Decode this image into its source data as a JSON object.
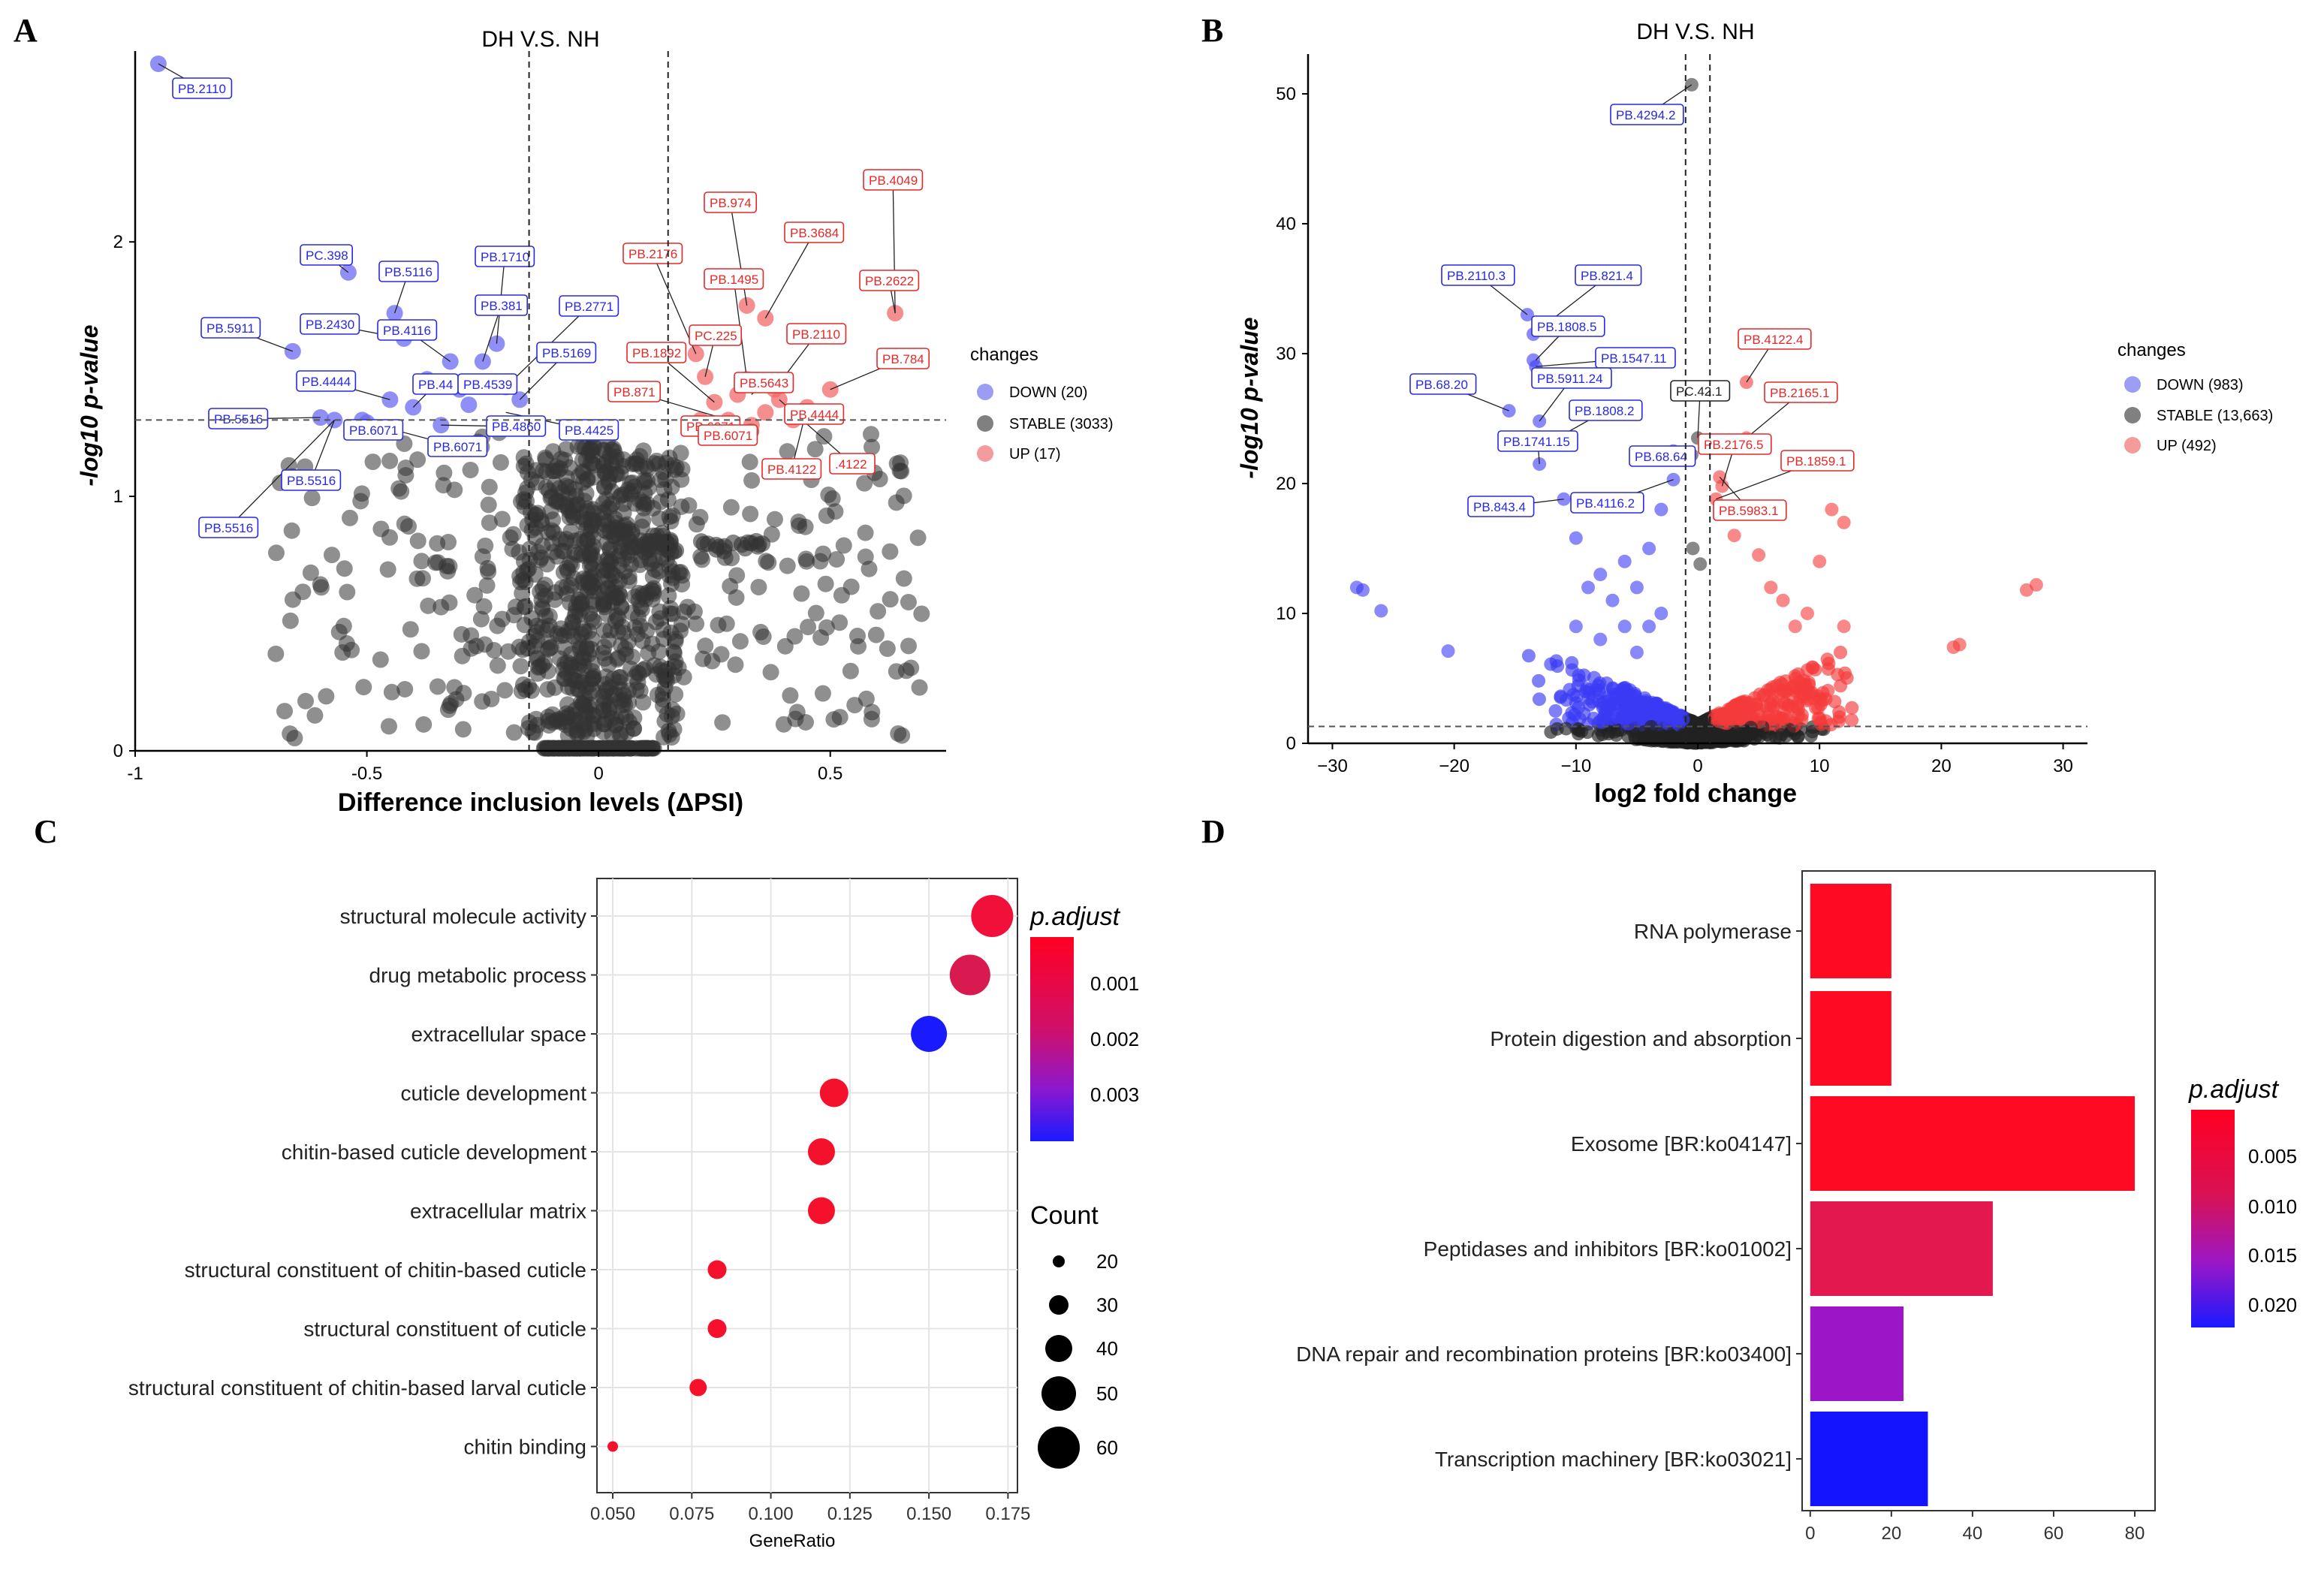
{
  "panel_letters": [
    "A",
    "B",
    "C",
    "D"
  ],
  "chart_data": [
    {
      "panel": "A",
      "type": "scatter",
      "title": "DH V.S. NH",
      "xlabel": "Difference inclusion levels (ΔPSI)",
      "ylabel": "-log10 p-value",
      "xlim": [
        -1.0,
        0.75
      ],
      "ylim": [
        0,
        2.75
      ],
      "x_ticks": [
        -1,
        -0.5,
        0,
        0.5
      ],
      "x_tick_labels": [
        "-1",
        "-0.5",
        "0",
        "0.5"
      ],
      "y_ticks": [
        0,
        1,
        2
      ],
      "y_tick_labels": [
        "0",
        "1",
        "2"
      ],
      "vlines": [
        -0.15,
        0.15
      ],
      "hline": 1.3,
      "legend_title": "changes",
      "legend": [
        {
          "label": "DOWN (20)",
          "color": "#7b7bf0"
        },
        {
          "label": "STABLE (3033)",
          "color": "#555555"
        },
        {
          "label": "UP (17)",
          "color": "#f07b7b"
        }
      ],
      "colors": {
        "down": "#6a6af2",
        "stable": "#333333",
        "up": "#f26a6a"
      },
      "down_points": [
        [
          -0.95,
          2.7
        ],
        [
          -0.54,
          1.88
        ],
        [
          -0.66,
          1.57
        ],
        [
          -0.44,
          1.72
        ],
        [
          -0.42,
          1.62
        ],
        [
          -0.32,
          1.53
        ],
        [
          -0.22,
          1.6
        ],
        [
          -0.25,
          1.53
        ],
        [
          -0.17,
          1.38
        ],
        [
          -0.2,
          1.43
        ],
        [
          -0.37,
          1.46
        ],
        [
          -0.3,
          1.42
        ],
        [
          -0.45,
          1.38
        ],
        [
          -0.51,
          1.3
        ],
        [
          -0.4,
          1.35
        ],
        [
          -0.57,
          1.3
        ],
        [
          -0.34,
          1.28
        ],
        [
          -0.5,
          1.29
        ],
        [
          -0.28,
          1.36
        ],
        [
          -0.6,
          1.31
        ]
      ],
      "up_points": [
        [
          0.32,
          1.75
        ],
        [
          0.36,
          1.7
        ],
        [
          0.64,
          1.72
        ],
        [
          0.5,
          1.42
        ],
        [
          0.23,
          1.47
        ],
        [
          0.21,
          1.56
        ],
        [
          0.32,
          1.46
        ],
        [
          0.25,
          1.37
        ],
        [
          0.3,
          1.4
        ],
        [
          0.39,
          1.38
        ],
        [
          0.45,
          1.35
        ],
        [
          0.36,
          1.33
        ],
        [
          0.28,
          1.3
        ],
        [
          0.42,
          1.3
        ],
        [
          0.33,
          1.28
        ],
        [
          0.22,
          1.3
        ],
        [
          0.38,
          1.42
        ]
      ],
      "labels": [
        {
          "text": "PB.2110",
          "side": "down"
        },
        {
          "text": "PC.398",
          "side": "down"
        },
        {
          "text": "PB.5116",
          "side": "down"
        },
        {
          "text": "PB.1710",
          "side": "down"
        },
        {
          "text": "PB.2430",
          "side": "down"
        },
        {
          "text": "PB.4116",
          "side": "down"
        },
        {
          "text": "PB.381",
          "side": "down"
        },
        {
          "text": "PB.2771",
          "side": "down"
        },
        {
          "text": "PB.5911",
          "side": "down"
        },
        {
          "text": "PB.4444",
          "side": "down"
        },
        {
          "text": "PB.44",
          "side": "down"
        },
        {
          "text": "PB.4539",
          "side": "down"
        },
        {
          "text": "PB.5169",
          "side": "down"
        },
        {
          "text": "PB.5516",
          "side": "down"
        },
        {
          "text": "PB.6071",
          "side": "down"
        },
        {
          "text": "PB.4860",
          "side": "down"
        },
        {
          "text": "PB.4425",
          "side": "down"
        },
        {
          "text": "PB.6071",
          "side": "down"
        },
        {
          "text": "PB.5516",
          "side": "down"
        },
        {
          "text": "PB.5516",
          "side": "down"
        },
        {
          "text": "PB.974",
          "side": "up"
        },
        {
          "text": "PB.4049",
          "side": "up"
        },
        {
          "text": "PB.3684",
          "side": "up"
        },
        {
          "text": "PB.2176",
          "side": "up"
        },
        {
          "text": "PB.1495",
          "side": "up"
        },
        {
          "text": "PB.2622",
          "side": "up"
        },
        {
          "text": "PC.225",
          "side": "up"
        },
        {
          "text": "PB.2110",
          "side": "up"
        },
        {
          "text": "PB.1892",
          "side": "up"
        },
        {
          "text": "PB.784",
          "side": "up"
        },
        {
          "text": "PB.5643",
          "side": "up"
        },
        {
          "text": "PB.871",
          "side": "up"
        },
        {
          "text": "PB.6071",
          "side": "up"
        },
        {
          "text": "PB.4444",
          "side": "up"
        },
        {
          "text": "PB.6071",
          "side": "up"
        },
        {
          "text": "PB.4122",
          "side": "up"
        },
        {
          "text": ".4122",
          "side": "up"
        }
      ]
    },
    {
      "panel": "B",
      "type": "scatter",
      "title": "DH V.S. NH",
      "xlabel": "log2 fold change",
      "ylabel": "-log10 p-value",
      "xlim": [
        -32,
        32
      ],
      "ylim": [
        0,
        52
      ],
      "x_ticks": [
        -30,
        -20,
        -10,
        0,
        10,
        20,
        30
      ],
      "x_tick_labels": [
        "−30",
        "−20",
        "−10",
        "0",
        "10",
        "20",
        "30"
      ],
      "y_ticks": [
        0,
        10,
        20,
        30,
        40,
        50
      ],
      "y_tick_labels": [
        "0",
        "10",
        "20",
        "30",
        "40",
        "50"
      ],
      "vlines": [
        -1,
        1
      ],
      "hline": 1.3,
      "legend_title": "changes",
      "legend": [
        {
          "label": "DOWN (983)",
          "color": "#7b7bf0"
        },
        {
          "label": "STABLE (13,663)",
          "color": "#555555"
        },
        {
          "label": "UP (492)",
          "color": "#f07b7b"
        }
      ],
      "colors": {
        "down": "#3a3af5",
        "stable": "#222222",
        "up": "#f53a3a"
      },
      "down_points": [
        [
          -28,
          12
        ],
        [
          -27.5,
          11.8
        ],
        [
          -26,
          10.2
        ],
        [
          -20.5,
          7.1
        ],
        [
          -15.5,
          25.6
        ],
        [
          -13,
          21.5
        ],
        [
          -14,
          33
        ],
        [
          -13.5,
          31.5
        ],
        [
          -13.5,
          29.5
        ],
        [
          -13.3,
          29
        ],
        [
          -13,
          24.8
        ],
        [
          -12.5,
          23
        ],
        [
          -11,
          18.8
        ],
        [
          -10,
          15.8
        ],
        [
          -9,
          12
        ],
        [
          -8,
          13
        ],
        [
          -7,
          11
        ],
        [
          -6,
          14
        ],
        [
          -5,
          12
        ],
        [
          -4,
          15
        ],
        [
          -3,
          18
        ],
        [
          -2,
          22.5
        ],
        [
          -2,
          20.3
        ],
        [
          -3,
          10
        ],
        [
          -10,
          9
        ],
        [
          -8,
          8
        ],
        [
          -5,
          7
        ],
        [
          -6,
          9
        ],
        [
          -4,
          9
        ]
      ],
      "up_points": [
        [
          4,
          27.8
        ],
        [
          4,
          23.5
        ],
        [
          2,
          19.8
        ],
        [
          1.5,
          18.8
        ],
        [
          1.8,
          20.5
        ],
        [
          5,
          14.5
        ],
        [
          11,
          18
        ],
        [
          12,
          17
        ],
        [
          10,
          14
        ],
        [
          12,
          9
        ],
        [
          9,
          10
        ],
        [
          21.5,
          7.6
        ],
        [
          21,
          7.4
        ],
        [
          27,
          11.8
        ],
        [
          27.8,
          12.2
        ],
        [
          7,
          11
        ],
        [
          8,
          9
        ],
        [
          6,
          12
        ],
        [
          3,
          16
        ]
      ],
      "stable_points": [
        [
          -0.5,
          50.7
        ],
        [
          0,
          23.5
        ],
        [
          -0.5,
          22.2
        ],
        [
          0.2,
          13.8
        ],
        [
          -0.4,
          15
        ]
      ],
      "labels": [
        {
          "text": "PB.4294.2",
          "side": "down"
        },
        {
          "text": "PB.2110.3",
          "side": "down"
        },
        {
          "text": "PB.821.4",
          "side": "down"
        },
        {
          "text": "PB.1808.5",
          "side": "down"
        },
        {
          "text": "PB.1547.11",
          "side": "down"
        },
        {
          "text": "PB.68.20",
          "side": "down"
        },
        {
          "text": "PB.5911.24",
          "side": "down"
        },
        {
          "text": "PB.1808.2",
          "side": "down"
        },
        {
          "text": "PB.1741.15",
          "side": "down"
        },
        {
          "text": "PB.68.64",
          "side": "down"
        },
        {
          "text": "PB.843.4",
          "side": "down"
        },
        {
          "text": "PB.4116.2",
          "side": "down"
        },
        {
          "text": "PC.42.1",
          "side": "stable"
        },
        {
          "text": "PB.4122.4",
          "side": "up"
        },
        {
          "text": "PB.2165.1",
          "side": "up"
        },
        {
          "text": "PB.2176.5",
          "side": "up"
        },
        {
          "text": "PB.1859.1",
          "side": "up"
        },
        {
          "text": "PB.5983.1",
          "side": "up"
        }
      ]
    },
    {
      "panel": "C",
      "type": "scatter",
      "subtype": "dotplot",
      "xlabel": "GeneRatio",
      "ylabel": "",
      "xlim": [
        0.045,
        0.178
      ],
      "x_ticks": [
        0.05,
        0.075,
        0.1,
        0.125,
        0.15,
        0.175
      ],
      "x_tick_labels": [
        "0.050",
        "0.075",
        "0.100",
        "0.125",
        "0.150",
        "0.175"
      ],
      "terms": [
        "structural molecule activity",
        "drug metabolic process",
        "extracellular space",
        "cuticle development",
        "chitin-based cuticle development",
        "extracellular matrix",
        "structural constituent of chitin-based cuticle",
        "structural constituent of cuticle",
        "structural constituent of chitin-based larval cuticle",
        "chitin binding"
      ],
      "gene_ratio": [
        0.17,
        0.163,
        0.15,
        0.12,
        0.116,
        0.116,
        0.083,
        0.083,
        0.077,
        0.05
      ],
      "count": [
        60,
        58,
        52,
        42,
        40,
        40,
        29,
        29,
        27,
        18
      ],
      "colors": [
        "#f0103a",
        "#d81a50",
        "#1a1aff",
        "#f5102c",
        "#f5102c",
        "#f5102c",
        "#f5102c",
        "#f5102c",
        "#f5102c",
        "#f5102c"
      ],
      "color_legend_title": "p.adjust",
      "color_legend_ticks": [
        "0.001",
        "0.002",
        "0.003"
      ],
      "size_legend_title": "Count",
      "size_legend": [
        20,
        30,
        40,
        50,
        60
      ]
    },
    {
      "panel": "D",
      "type": "bar",
      "orientation": "horizontal",
      "categories": [
        "RNA polymerase",
        "Protein digestion and absorption",
        "Exosome [BR:ko04147]",
        "Peptidases and inhibitors [BR:ko01002]",
        "DNA repair and recombination proteins [BR:ko03400]",
        "Transcription machinery [BR:ko03021]"
      ],
      "values": [
        20,
        20,
        80,
        45,
        23,
        29
      ],
      "colors": [
        "#ff0a23",
        "#ff0a23",
        "#ff0a23",
        "#e2184f",
        "#9c16c8",
        "#1414ff"
      ],
      "xlim": [
        -2,
        85
      ],
      "x_ticks": [
        0,
        20,
        40,
        60,
        80
      ],
      "x_tick_labels": [
        "0",
        "20",
        "40",
        "60",
        "80"
      ],
      "xlabel": "",
      "ylabel": "",
      "color_legend_title": "p.adjust",
      "color_legend_ticks": [
        "0.005",
        "0.010",
        "0.015",
        "0.020"
      ]
    }
  ]
}
